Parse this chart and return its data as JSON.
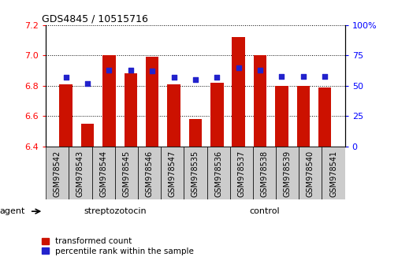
{
  "title": "GDS4845 / 10515716",
  "samples": [
    "GSM978542",
    "GSM978543",
    "GSM978544",
    "GSM978545",
    "GSM978546",
    "GSM978547",
    "GSM978535",
    "GSM978536",
    "GSM978537",
    "GSM978538",
    "GSM978539",
    "GSM978540",
    "GSM978541"
  ],
  "bar_values": [
    6.81,
    6.55,
    7.0,
    6.88,
    6.99,
    6.81,
    6.58,
    6.82,
    7.12,
    7.0,
    6.8,
    6.8,
    6.79
  ],
  "percentile_values": [
    57,
    52,
    63,
    63,
    62,
    57,
    55,
    57,
    65,
    63,
    58,
    58,
    58
  ],
  "ylim_left": [
    6.4,
    7.2
  ],
  "ylim_right": [
    0,
    100
  ],
  "bar_color": "#cc1100",
  "dot_color": "#2222cc",
  "yticks_left": [
    6.4,
    6.6,
    6.8,
    7.0,
    7.2
  ],
  "yticks_right": [
    0,
    25,
    50,
    75,
    100
  ],
  "ytick_labels_right": [
    "0",
    "25",
    "50",
    "75",
    "100%"
  ],
  "group1_label": "streptozotocin",
  "group2_label": "control",
  "group1_count": 6,
  "group2_count": 7,
  "legend_tc": "transformed count",
  "legend_pr": "percentile rank within the sample",
  "agent_label": "agent",
  "background_color": "#ffffff",
  "plot_bg_color": "#ffffff",
  "tick_bg_color": "#cccccc",
  "group_bg_color": "#99ee77",
  "bar_width": 0.6,
  "base_value": 6.4
}
